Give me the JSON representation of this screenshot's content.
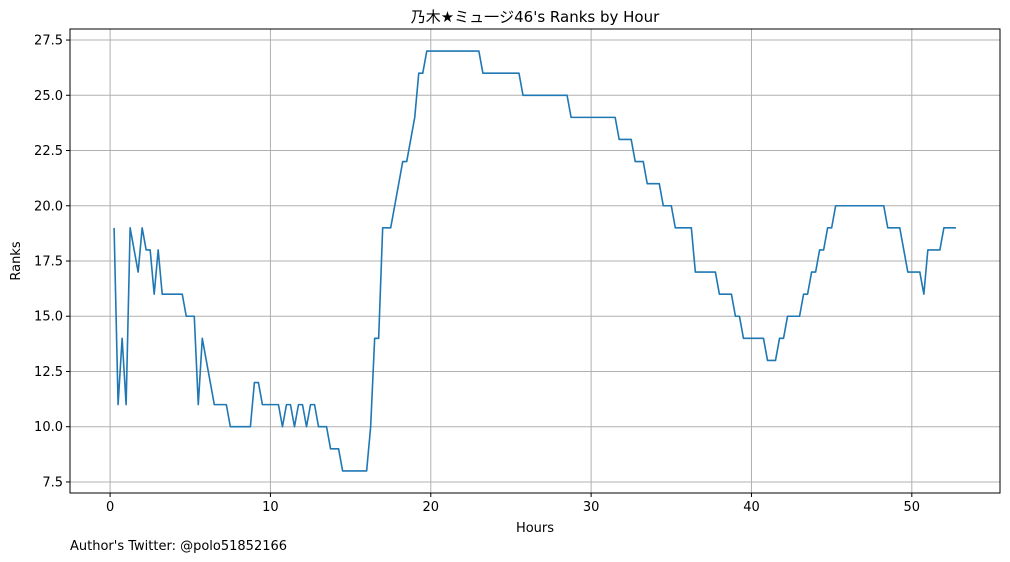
{
  "chart_data": {
    "type": "line",
    "title": "乃木★ミュ一ジ46's Ranks by Hour",
    "xlabel": "Hours",
    "ylabel": "Ranks",
    "xlim": [
      -2.5,
      55.5
    ],
    "ylim": [
      7.0,
      28.0
    ],
    "xticks": [
      0,
      10,
      20,
      30,
      40,
      50
    ],
    "yticks": [
      7.5,
      10.0,
      12.5,
      15.0,
      17.5,
      20.0,
      22.5,
      25.0,
      27.5
    ],
    "grid": true,
    "series": [
      {
        "color": "#1f77b4",
        "points": [
          [
            0.25,
            19
          ],
          [
            0.5,
            11
          ],
          [
            0.75,
            14
          ],
          [
            1.0,
            11
          ],
          [
            1.25,
            19
          ],
          [
            1.5,
            18
          ],
          [
            1.75,
            17
          ],
          [
            2.0,
            19
          ],
          [
            2.25,
            18
          ],
          [
            2.5,
            18
          ],
          [
            2.75,
            16
          ],
          [
            3.0,
            18
          ],
          [
            3.25,
            16
          ],
          [
            3.5,
            16
          ],
          [
            4.0,
            16
          ],
          [
            4.5,
            16
          ],
          [
            4.75,
            15
          ],
          [
            5.25,
            15
          ],
          [
            5.5,
            11
          ],
          [
            5.75,
            14
          ],
          [
            6.5,
            11
          ],
          [
            7.25,
            11
          ],
          [
            7.5,
            10
          ],
          [
            8.0,
            10
          ],
          [
            8.75,
            10
          ],
          [
            9.0,
            12
          ],
          [
            9.25,
            12
          ],
          [
            9.5,
            11
          ],
          [
            10.5,
            11
          ],
          [
            10.75,
            10
          ],
          [
            11.0,
            11
          ],
          [
            11.25,
            11
          ],
          [
            11.5,
            10
          ],
          [
            11.75,
            11
          ],
          [
            12.0,
            11
          ],
          [
            12.25,
            10
          ],
          [
            12.5,
            11
          ],
          [
            12.75,
            11
          ],
          [
            13.0,
            10
          ],
          [
            13.5,
            10
          ],
          [
            13.75,
            9
          ],
          [
            14.25,
            9
          ],
          [
            14.5,
            8
          ],
          [
            15.0,
            8
          ],
          [
            16.0,
            8
          ],
          [
            16.25,
            10
          ],
          [
            16.5,
            14
          ],
          [
            16.75,
            14
          ],
          [
            17.0,
            19
          ],
          [
            17.5,
            19
          ],
          [
            18.25,
            22
          ],
          [
            18.5,
            22
          ],
          [
            19.0,
            24
          ],
          [
            19.25,
            26
          ],
          [
            19.5,
            26
          ],
          [
            19.75,
            27
          ],
          [
            20.5,
            27
          ],
          [
            22.0,
            27
          ],
          [
            23.0,
            27
          ],
          [
            23.25,
            26
          ],
          [
            24.5,
            26
          ],
          [
            25.5,
            26
          ],
          [
            25.75,
            25
          ],
          [
            27.5,
            25
          ],
          [
            28.5,
            25
          ],
          [
            28.75,
            24
          ],
          [
            30.0,
            24
          ],
          [
            31.5,
            24
          ],
          [
            31.75,
            23
          ],
          [
            32.5,
            23
          ],
          [
            32.75,
            22
          ],
          [
            33.25,
            22
          ],
          [
            33.5,
            21
          ],
          [
            34.25,
            21
          ],
          [
            34.5,
            20
          ],
          [
            35.0,
            20
          ],
          [
            35.25,
            19
          ],
          [
            36.25,
            19
          ],
          [
            36.5,
            17
          ],
          [
            37.75,
            17
          ],
          [
            38.0,
            16
          ],
          [
            38.75,
            16
          ],
          [
            39.0,
            15
          ],
          [
            39.25,
            15
          ],
          [
            39.5,
            14
          ],
          [
            40.25,
            14
          ],
          [
            40.75,
            14
          ],
          [
            41.0,
            13
          ],
          [
            41.5,
            13
          ],
          [
            41.75,
            14
          ],
          [
            42.0,
            14
          ],
          [
            42.25,
            15
          ],
          [
            43.0,
            15
          ],
          [
            43.25,
            16
          ],
          [
            43.5,
            16
          ],
          [
            43.75,
            17
          ],
          [
            44.0,
            17
          ],
          [
            44.25,
            18
          ],
          [
            44.5,
            18
          ],
          [
            44.75,
            19
          ],
          [
            45.0,
            19
          ],
          [
            45.25,
            20
          ],
          [
            46.0,
            20
          ],
          [
            47.0,
            20
          ],
          [
            48.25,
            20
          ],
          [
            48.5,
            19
          ],
          [
            49.25,
            19
          ],
          [
            49.5,
            18
          ],
          [
            49.75,
            17
          ],
          [
            50.5,
            17
          ],
          [
            50.75,
            16
          ],
          [
            51.0,
            18
          ],
          [
            51.75,
            18
          ],
          [
            52.0,
            19
          ],
          [
            52.75,
            19
          ]
        ]
      }
    ],
    "footer": "Author's Twitter: @polo51852166"
  }
}
